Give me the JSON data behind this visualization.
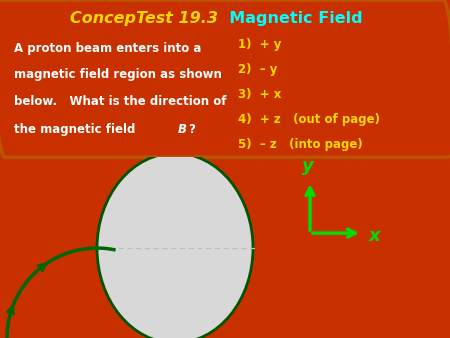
{
  "title_part1": "ConcepTest 19.3",
  "title_part2": "  Magnetic Field",
  "title_color1": "#FFD700",
  "title_color2": "#00FFFF",
  "bg_top": "#000000",
  "bg_bottom": "#C83000",
  "border_color": "#BB5500",
  "question_lines": [
    "A proton beam enters into a",
    "magnetic field region as shown",
    "below.   What is the direction of",
    "the magnetic field "
  ],
  "question_color": "#FFFFFF",
  "options": [
    "1)  + y",
    "2)  – y",
    "3)  + x",
    "4)  + z   (out of page)",
    "5)  – z   (into page)"
  ],
  "option_color": "#FFD700",
  "circle_face": "#D8D8D8",
  "circle_edge": "#005500",
  "axis_color": "#00DD00",
  "curve_color": "#006600",
  "dashed_color": "#BBBBBB",
  "fig_width": 4.5,
  "fig_height": 3.38,
  "dpi": 100
}
